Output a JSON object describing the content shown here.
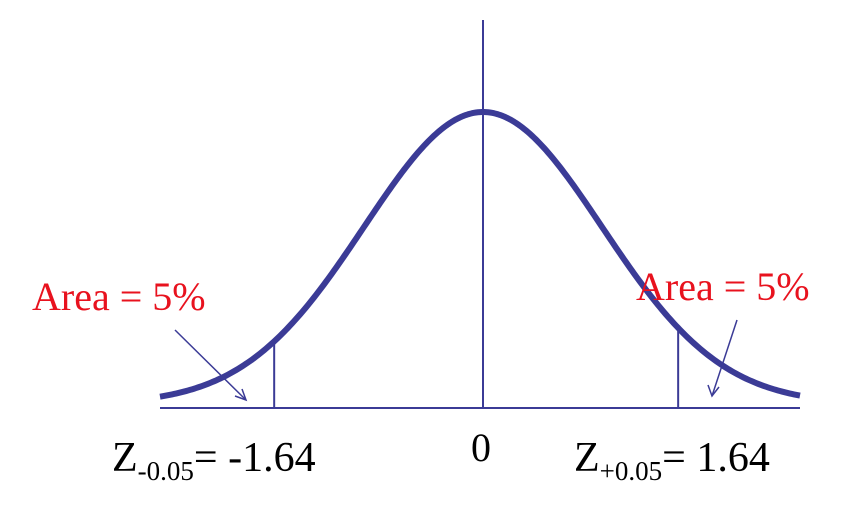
{
  "diagram": {
    "curve": {
      "type": "normal-distribution",
      "mean": 0,
      "sd": 1,
      "color": "#3b3b96"
    },
    "axis_color": "#3b3b96",
    "critical_values": [
      -1.64,
      1.64
    ],
    "labels": {
      "left_area": "Area = 5%",
      "right_area": "Area = 5%",
      "center_tick": "0",
      "left_z_base": "Z",
      "left_z_sub": "-0.05",
      "left_z_value": "= -1.64",
      "right_z_base": "Z",
      "right_z_sub": "+0.05",
      "right_z_value": "= 1.64"
    },
    "label_color": "#e8121e"
  }
}
